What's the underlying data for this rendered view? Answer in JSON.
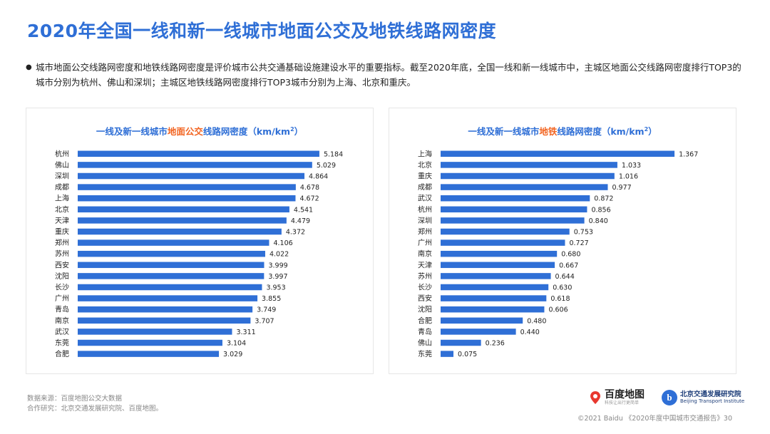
{
  "page": {
    "title": "2020年全国一线和新一线城市地面公交及地铁线路网密度",
    "intro": "城市地面公交线路网密度和地铁线路网密度是评价城市公共交通基础设施建设水平的重要指标。截至2020年底，全国一线和新一线城市中，主城区地面公交线路网密度排行TOP3的城市分别为杭州、佛山和深圳；主城区地铁线路网密度排行TOP3城市分别为上海、北京和重庆。",
    "bullet": "●"
  },
  "footer": {
    "source": "数据来源：百度地图公交大数据",
    "cooperation": "合作研究：北京交通发展研究院、百度地图。",
    "copyright": "©2021 Baidu 《2020年度中国城市交通报告》30"
  },
  "logos": {
    "baidu_name": "百度地图",
    "baidu_slogan": "科技让出行更简单",
    "bjtri_name": "北京交通发展研究院",
    "bjtri_en": "Beijing Transport Institute",
    "bjtri_mark": "b"
  },
  "chart_data": [
    {
      "type": "bar",
      "orientation": "horizontal",
      "title_prefix": "一线及新一线城市",
      "title_highlight": "地面公交",
      "title_suffix": "线路网密度（km/km",
      "title_sup": "2",
      "title_end": "）",
      "categories": [
        "杭州",
        "佛山",
        "深圳",
        "成都",
        "上海",
        "北京",
        "天津",
        "重庆",
        "郑州",
        "苏州",
        "西安",
        "沈阳",
        "长沙",
        "广州",
        "青岛",
        "南京",
        "武汉",
        "东莞",
        "合肥"
      ],
      "values": [
        5.184,
        5.029,
        4.864,
        4.678,
        4.672,
        4.541,
        4.479,
        4.372,
        4.106,
        4.022,
        3.999,
        3.997,
        3.953,
        3.855,
        3.749,
        3.707,
        3.311,
        3.104,
        3.029
      ],
      "value_labels": [
        "5.184",
        "5.029",
        "4.864",
        "4.678",
        "4.672",
        "4.541",
        "4.479",
        "4.372",
        "4.106",
        "4.022",
        "3.999",
        "3.997",
        "3.953",
        "3.855",
        "3.749",
        "3.707",
        "3.311",
        "3.104",
        "3.029"
      ],
      "xlim": [
        0,
        5.2
      ],
      "grid": false,
      "bar_color": "#2f6fd6"
    },
    {
      "type": "bar",
      "orientation": "horizontal",
      "title_prefix": "一线及新一线城市",
      "title_highlight": "地铁",
      "title_suffix": "线路网密度（km/km",
      "title_sup": "2",
      "title_end": "）",
      "categories": [
        "上海",
        "北京",
        "重庆",
        "成都",
        "武汉",
        "杭州",
        "深圳",
        "郑州",
        "广州",
        "南京",
        "天津",
        "苏州",
        "长沙",
        "西安",
        "沈阳",
        "合肥",
        "青岛",
        "佛山",
        "东莞"
      ],
      "values": [
        1.367,
        1.033,
        1.016,
        0.977,
        0.872,
        0.856,
        0.84,
        0.753,
        0.727,
        0.68,
        0.667,
        0.644,
        0.63,
        0.618,
        0.606,
        0.48,
        0.44,
        0.236,
        0.075
      ],
      "value_labels": [
        "1.367",
        "1.033",
        "1.016",
        "0.977",
        "0.872",
        "0.856",
        "0.840",
        "0.753",
        "0.727",
        "0.680",
        "0.667",
        "0.644",
        "0.630",
        "0.618",
        "0.606",
        "0.480",
        "0.440",
        "0.236",
        "0.075"
      ],
      "xlim": [
        0,
        1.4
      ],
      "grid": false,
      "bar_color": "#2f6fd6"
    }
  ]
}
